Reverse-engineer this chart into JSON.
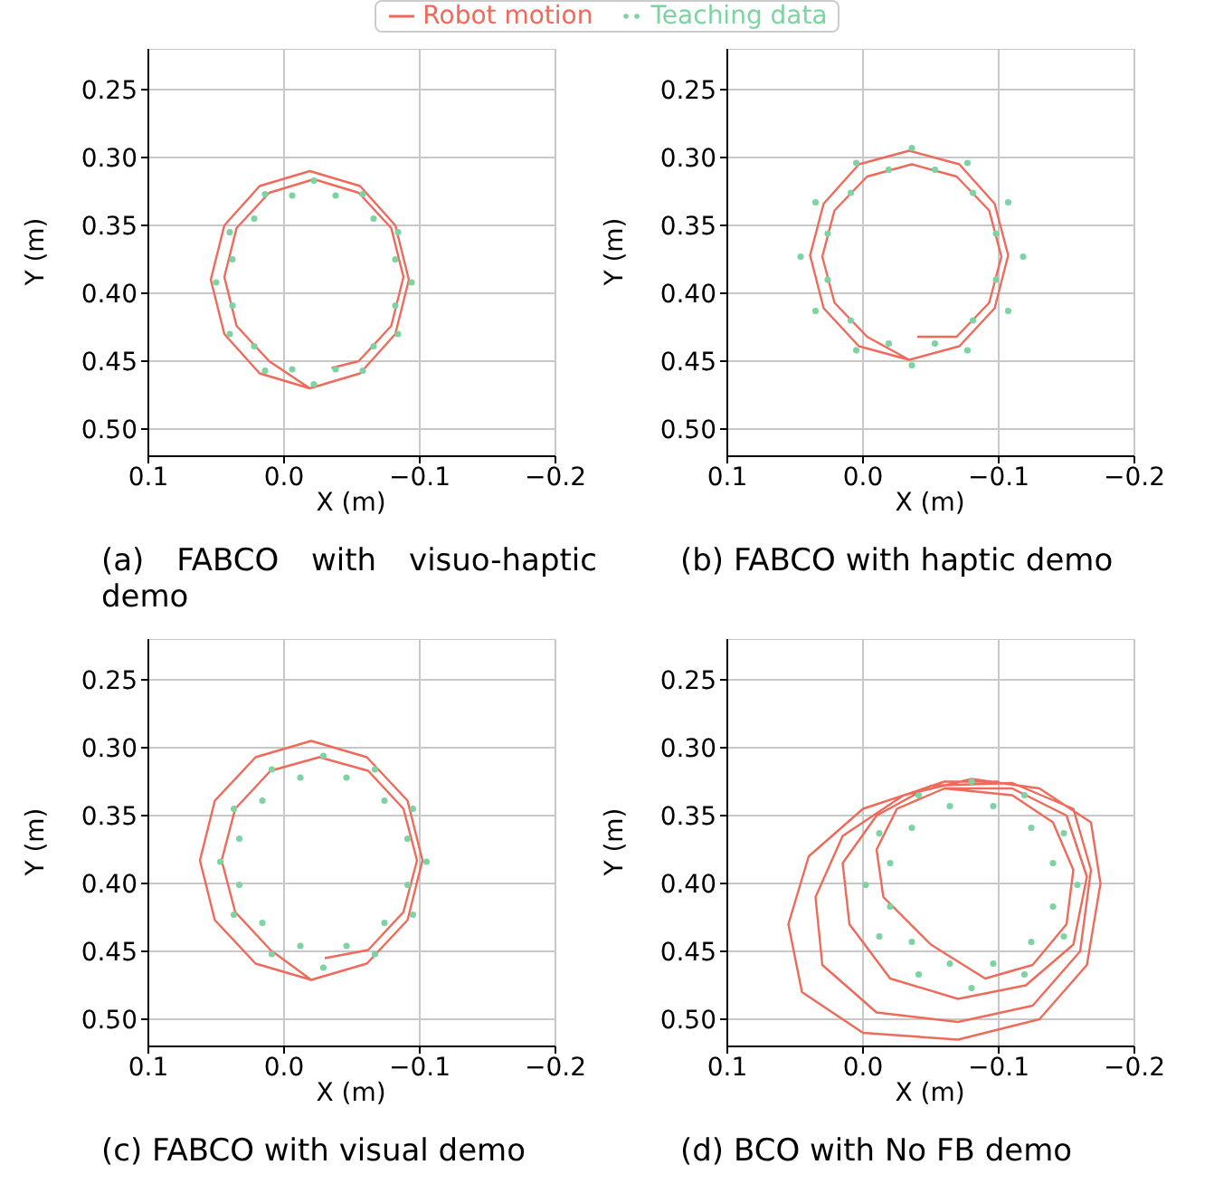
{
  "chart_data": [
    {
      "type": "line",
      "title": "(a) FABCO with visuo-haptic demo",
      "xlabel": "X (m)",
      "ylabel": "Y (m)",
      "xlim": [
        0.1,
        -0.2
      ],
      "ylim": [
        0.52,
        0.22
      ],
      "xticks": [
        {
          "value": 0.1,
          "label": "0.1"
        },
        {
          "value": 0,
          "label": "0.0"
        },
        {
          "value": -0.1,
          "label": "−0.1"
        },
        {
          "value": -0.2,
          "label": "−0.2"
        }
      ],
      "yticks": [
        {
          "value": 0.25,
          "label": "0.25"
        },
        {
          "value": 0.3,
          "label": "0.30"
        },
        {
          "value": 0.35,
          "label": "0.35"
        },
        {
          "value": 0.4,
          "label": "0.40"
        },
        {
          "value": 0.45,
          "label": "0.45"
        },
        {
          "value": 0.5,
          "label": "0.50"
        }
      ],
      "grid": true,
      "legend": "top",
      "series": [
        {
          "name": "Robot motion",
          "type": "line",
          "color": "#ee6a5a",
          "x": [
            -0.019,
            0.018,
            0.044,
            0.054,
            0.044,
            0.018,
            -0.019,
            -0.056,
            -0.082,
            -0.092,
            -0.082,
            -0.056,
            -0.019,
            0.011,
            0.035,
            0.044,
            0.035,
            0.011,
            -0.022,
            -0.055,
            -0.079,
            -0.088,
            -0.079,
            -0.055,
            -0.035
          ],
          "values": [
            0.47,
            0.459,
            0.43,
            0.39,
            0.35,
            0.321,
            0.31,
            0.321,
            0.35,
            0.39,
            0.43,
            0.459,
            0.47,
            0.45,
            0.424,
            0.388,
            0.352,
            0.326,
            0.316,
            0.326,
            0.352,
            0.388,
            0.424,
            0.45,
            0.455
          ]
        },
        {
          "name": "Teaching data",
          "type": "scatter",
          "color": "#7dd3a2",
          "x": [
            -0.094,
            -0.084,
            -0.058,
            -0.022,
            0.014,
            0.04,
            0.05,
            0.04,
            0.014,
            -0.022,
            -0.058,
            -0.084,
            -0.082,
            -0.066,
            -0.038,
            -0.006,
            0.022,
            0.038,
            0.038,
            0.022,
            -0.006,
            -0.038,
            -0.066,
            -0.082
          ],
          "values": [
            0.392,
            0.43,
            0.457,
            0.467,
            0.457,
            0.43,
            0.392,
            0.355,
            0.327,
            0.317,
            0.327,
            0.355,
            0.409,
            0.439,
            0.456,
            0.456,
            0.439,
            0.409,
            0.375,
            0.345,
            0.328,
            0.328,
            0.345,
            0.375
          ]
        }
      ]
    },
    {
      "type": "line",
      "title": "(b) FABCO with haptic demo",
      "xlabel": "X (m)",
      "ylabel": "Y (m)",
      "xlim": [
        0.1,
        -0.2
      ],
      "ylim": [
        0.52,
        0.22
      ],
      "xticks": [
        {
          "value": 0.1,
          "label": "0.1"
        },
        {
          "value": 0,
          "label": "0.0"
        },
        {
          "value": -0.1,
          "label": "−0.1"
        },
        {
          "value": -0.2,
          "label": "−0.2"
        }
      ],
      "yticks": [
        {
          "value": 0.25,
          "label": "0.25"
        },
        {
          "value": 0.3,
          "label": "0.30"
        },
        {
          "value": 0.35,
          "label": "0.35"
        },
        {
          "value": 0.4,
          "label": "0.40"
        },
        {
          "value": 0.45,
          "label": "0.45"
        },
        {
          "value": 0.5,
          "label": "0.50"
        }
      ],
      "grid": true,
      "series": [
        {
          "type": "line",
          "color": "#ee6a5a",
          "x": [
            -0.034,
            0.003,
            0.029,
            0.039,
            0.029,
            0.003,
            -0.034,
            -0.071,
            -0.097,
            -0.107,
            -0.097,
            -0.071,
            -0.034,
            -0.003,
            0.021,
            0.03,
            0.021,
            -0.003,
            -0.036,
            -0.069,
            -0.093,
            -0.102,
            -0.093,
            -0.069,
            -0.04
          ],
          "values": [
            0.449,
            0.439,
            0.411,
            0.372,
            0.334,
            0.305,
            0.295,
            0.305,
            0.334,
            0.372,
            0.411,
            0.439,
            0.449,
            0.432,
            0.407,
            0.373,
            0.339,
            0.314,
            0.305,
            0.314,
            0.339,
            0.373,
            0.407,
            0.432,
            0.432
          ]
        },
        {
          "type": "scatter",
          "color": "#7dd3a2",
          "x": [
            -0.118,
            -0.107,
            -0.077,
            -0.036,
            0.005,
            0.035,
            0.046,
            0.035,
            0.005,
            -0.036,
            -0.077,
            -0.107,
            -0.098,
            -0.081,
            -0.053,
            -0.019,
            0.009,
            0.026,
            0.026,
            0.009,
            -0.019,
            -0.053,
            -0.081,
            -0.098
          ],
          "values": [
            0.373,
            0.413,
            0.442,
            0.453,
            0.442,
            0.413,
            0.373,
            0.333,
            0.304,
            0.293,
            0.304,
            0.333,
            0.39,
            0.42,
            0.437,
            0.437,
            0.42,
            0.39,
            0.356,
            0.326,
            0.309,
            0.309,
            0.326,
            0.356
          ]
        }
      ]
    },
    {
      "type": "line",
      "title": "(c) FABCO with visual demo",
      "xlabel": "X (m)",
      "ylabel": "Y (m)",
      "xlim": [
        0.1,
        -0.2
      ],
      "ylim": [
        0.52,
        0.22
      ],
      "xticks": [
        {
          "value": 0.1,
          "label": "0.1"
        },
        {
          "value": 0,
          "label": "0.0"
        },
        {
          "value": -0.1,
          "label": "−0.1"
        },
        {
          "value": -0.2,
          "label": "−0.2"
        }
      ],
      "yticks": [
        {
          "value": 0.25,
          "label": "0.25"
        },
        {
          "value": 0.3,
          "label": "0.30"
        },
        {
          "value": 0.35,
          "label": "0.35"
        },
        {
          "value": 0.4,
          "label": "0.40"
        },
        {
          "value": 0.45,
          "label": "0.45"
        },
        {
          "value": 0.5,
          "label": "0.50"
        }
      ],
      "grid": true,
      "series": [
        {
          "type": "line",
          "color": "#ee6a5a",
          "x": [
            -0.02,
            0.021,
            0.051,
            0.062,
            0.051,
            0.021,
            -0.02,
            -0.061,
            -0.091,
            -0.102,
            -0.091,
            -0.061,
            -0.02,
            0.01,
            0.036,
            0.046,
            0.036,
            0.01,
            -0.026,
            -0.062,
            -0.088,
            -0.098,
            -0.088,
            -0.062,
            -0.03
          ],
          "values": [
            0.471,
            0.459,
            0.427,
            0.383,
            0.339,
            0.307,
            0.295,
            0.307,
            0.339,
            0.383,
            0.427,
            0.459,
            0.471,
            0.449,
            0.421,
            0.383,
            0.345,
            0.317,
            0.307,
            0.317,
            0.345,
            0.383,
            0.421,
            0.449,
            0.455
          ]
        },
        {
          "type": "scatter",
          "color": "#7dd3a2",
          "x": [
            -0.105,
            -0.095,
            -0.067,
            -0.029,
            0.009,
            0.037,
            0.047,
            0.037,
            0.009,
            -0.029,
            -0.067,
            -0.095,
            -0.091,
            -0.074,
            -0.046,
            -0.012,
            0.016,
            0.033,
            0.033,
            0.016,
            -0.012,
            -0.046,
            -0.074,
            -0.091
          ],
          "values": [
            0.384,
            0.423,
            0.452,
            0.462,
            0.452,
            0.423,
            0.384,
            0.345,
            0.316,
            0.306,
            0.316,
            0.345,
            0.401,
            0.429,
            0.446,
            0.446,
            0.429,
            0.401,
            0.367,
            0.339,
            0.322,
            0.322,
            0.339,
            0.367
          ]
        }
      ]
    },
    {
      "type": "line",
      "title": "(d) BCO with No FB demo",
      "xlabel": "X (m)",
      "ylabel": "Y (m)",
      "xlim": [
        0.1,
        -0.2
      ],
      "ylim": [
        0.52,
        0.22
      ],
      "xticks": [
        {
          "value": 0.1,
          "label": "0.1"
        },
        {
          "value": 0,
          "label": "0.0"
        },
        {
          "value": -0.1,
          "label": "−0.1"
        },
        {
          "value": -0.2,
          "label": "−0.2"
        }
      ],
      "yticks": [
        {
          "value": 0.25,
          "label": "0.25"
        },
        {
          "value": 0.3,
          "label": "0.30"
        },
        {
          "value": 0.35,
          "label": "0.35"
        },
        {
          "value": 0.4,
          "label": "0.40"
        },
        {
          "value": 0.45,
          "label": "0.45"
        },
        {
          "value": 0.5,
          "label": "0.50"
        }
      ],
      "grid": true,
      "series": [
        {
          "type": "line",
          "color": "#ee6a5a",
          "x": [
            -0.06,
            -0.11,
            -0.14,
            -0.155,
            -0.15,
            -0.125,
            -0.09,
            -0.05,
            -0.015,
            -0.01,
            -0.025,
            -0.06,
            -0.11,
            -0.15,
            -0.165,
            -0.155,
            -0.12,
            -0.07,
            -0.02,
            0.01,
            0.015,
            -0.01,
            -0.05,
            -0.11,
            -0.155,
            -0.168,
            -0.16,
            -0.125,
            -0.07,
            -0.01,
            0.03,
            0.035,
            0.015,
            -0.03,
            -0.08,
            -0.13,
            -0.168,
            -0.175,
            -0.165,
            -0.13,
            -0.07,
            0,
            0.045,
            0.055,
            0.04,
            0,
            -0.06,
            -0.1
          ],
          "values": [
            0.33,
            0.335,
            0.355,
            0.39,
            0.43,
            0.46,
            0.47,
            0.445,
            0.41,
            0.375,
            0.345,
            0.33,
            0.33,
            0.35,
            0.395,
            0.445,
            0.475,
            0.485,
            0.47,
            0.43,
            0.385,
            0.35,
            0.328,
            0.326,
            0.345,
            0.39,
            0.45,
            0.49,
            0.502,
            0.495,
            0.46,
            0.41,
            0.365,
            0.335,
            0.323,
            0.33,
            0.355,
            0.4,
            0.46,
            0.5,
            0.515,
            0.51,
            0.48,
            0.43,
            0.38,
            0.345,
            0.325,
            0.325
          ]
        },
        {
          "type": "scatter",
          "color": "#7dd3a2",
          "x": [
            -0.158,
            -0.148,
            -0.119,
            -0.08,
            -0.041,
            -0.012,
            -0.002,
            -0.012,
            -0.041,
            -0.08,
            -0.119,
            -0.148,
            -0.14,
            -0.124,
            -0.096,
            -0.064,
            -0.036,
            -0.02,
            -0.02,
            -0.036,
            -0.064,
            -0.096,
            -0.124,
            -0.14
          ],
          "values": [
            0.401,
            0.439,
            0.467,
            0.477,
            0.467,
            0.439,
            0.401,
            0.363,
            0.335,
            0.325,
            0.335,
            0.363,
            0.417,
            0.443,
            0.459,
            0.459,
            0.443,
            0.417,
            0.385,
            0.359,
            0.343,
            0.343,
            0.359,
            0.385
          ]
        }
      ]
    }
  ]
}
